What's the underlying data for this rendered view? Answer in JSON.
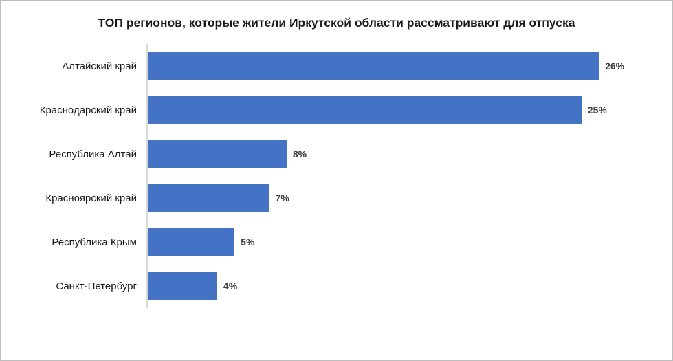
{
  "chart_data": {
    "type": "bar",
    "orientation": "horizontal",
    "title": "ТОП регионов, которые жители Иркутской области рассматривают для отпуска",
    "categories": [
      "Алтайский край",
      "Краснодарский край",
      "Республика Алтай",
      "Красноярский край",
      "Республика Крым",
      "Санкт-Петербург"
    ],
    "values": [
      26,
      25,
      8,
      7,
      5,
      4
    ],
    "value_labels": [
      "26%",
      "25%",
      "8%",
      "7%",
      "5%",
      "4%"
    ],
    "xlabel": "",
    "ylabel": "",
    "xlim": [
      0,
      30
    ],
    "grid": false,
    "legend": false,
    "bar_color": "#4472c4",
    "axis_line_color": "#d9d9d9",
    "value_label_color": "#404040",
    "title_color": "#1a1a1a"
  }
}
